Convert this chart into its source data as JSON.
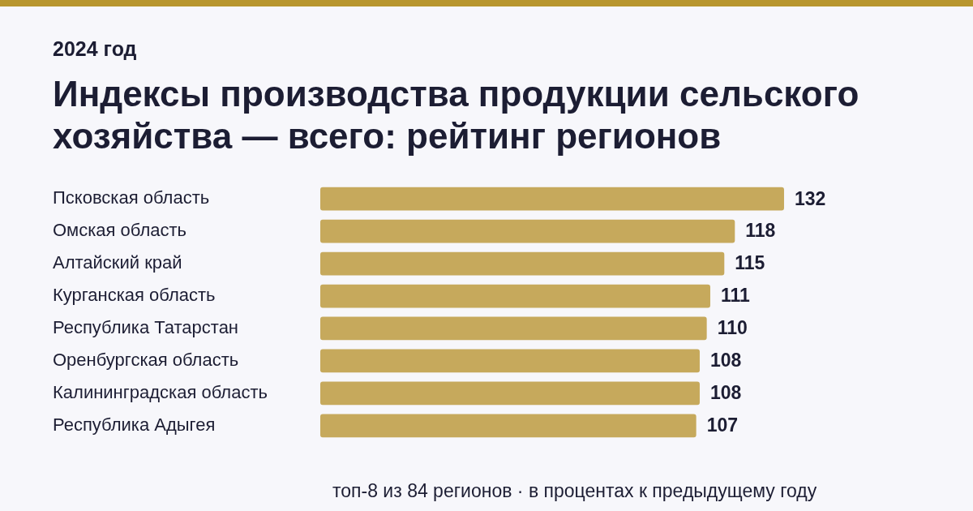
{
  "chart_data": {
    "type": "bar",
    "orientation": "horizontal",
    "subtitle": "2024 год",
    "title": "Индексы производства продукции сельского хозяйства — всего: рейтинг регионов",
    "categories": [
      "Псковская область",
      "Омская область",
      "Алтайский край",
      "Курганская область",
      "Республика Татарстан",
      "Оренбургская область",
      "Калининградская область",
      "Республика Адыгея"
    ],
    "values": [
      132,
      118,
      115,
      111,
      110,
      108,
      108,
      107
    ],
    "color": "#c6a95c",
    "data_labels": true,
    "legend": false,
    "annotations": [
      "топ-8 из 84 регионов · в процентах к предыдущему году"
    ]
  }
}
